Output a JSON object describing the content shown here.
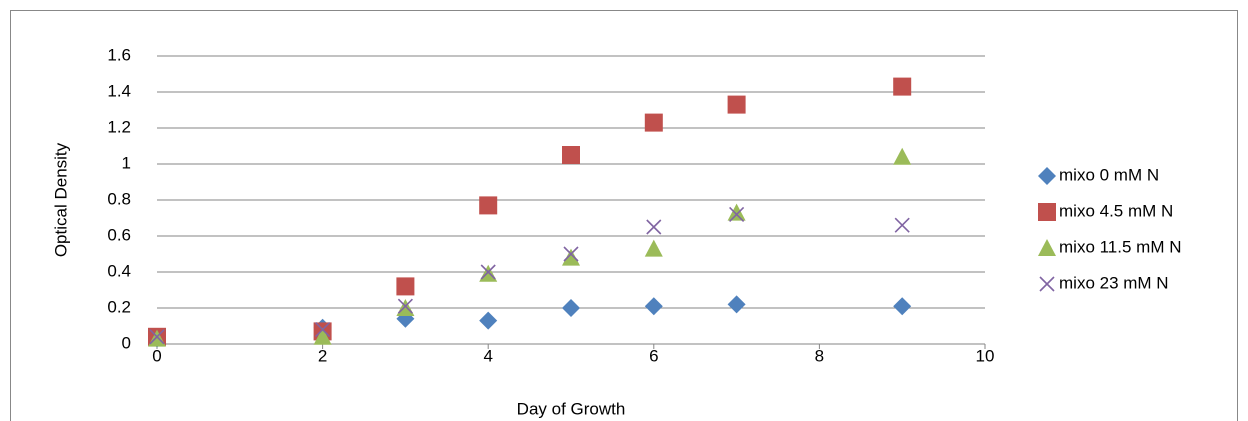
{
  "chart_data": {
    "type": "scatter",
    "x_label": "Day of Growth",
    "y_label": "Optical Density",
    "x": [
      0,
      2,
      3,
      4,
      5,
      6,
      7,
      9
    ],
    "series": [
      {
        "name": "mixo 0 mM N",
        "color": "#4f81bd",
        "marker": "diamond",
        "values": [
          0.03,
          0.09,
          0.14,
          0.13,
          0.2,
          0.21,
          0.22,
          0.21
        ]
      },
      {
        "name": "mixo 4.5 mM N",
        "color": "#c0504d",
        "marker": "square",
        "values": [
          0.04,
          0.07,
          0.32,
          0.77,
          1.05,
          1.23,
          1.33,
          1.43
        ]
      },
      {
        "name": "mixo 11.5 mM N",
        "color": "#9bbb59",
        "marker": "triangle",
        "values": [
          0.03,
          0.04,
          0.2,
          0.39,
          0.48,
          0.53,
          0.73,
          1.04
        ]
      },
      {
        "name": "mixo 23 mM N",
        "color": "#8064a2",
        "marker": "x",
        "values": [
          0.04,
          0.08,
          0.21,
          0.4,
          0.5,
          0.65,
          0.72,
          0.66
        ]
      }
    ],
    "xlim": [
      0,
      10
    ],
    "xticks": [
      0,
      2,
      4,
      6,
      8,
      10
    ],
    "ylim": [
      0,
      1.6
    ],
    "yticks": [
      0,
      0.2,
      0.4,
      0.6,
      0.8,
      1,
      1.2,
      1.4,
      1.6
    ],
    "grid": true,
    "legend": "right"
  }
}
